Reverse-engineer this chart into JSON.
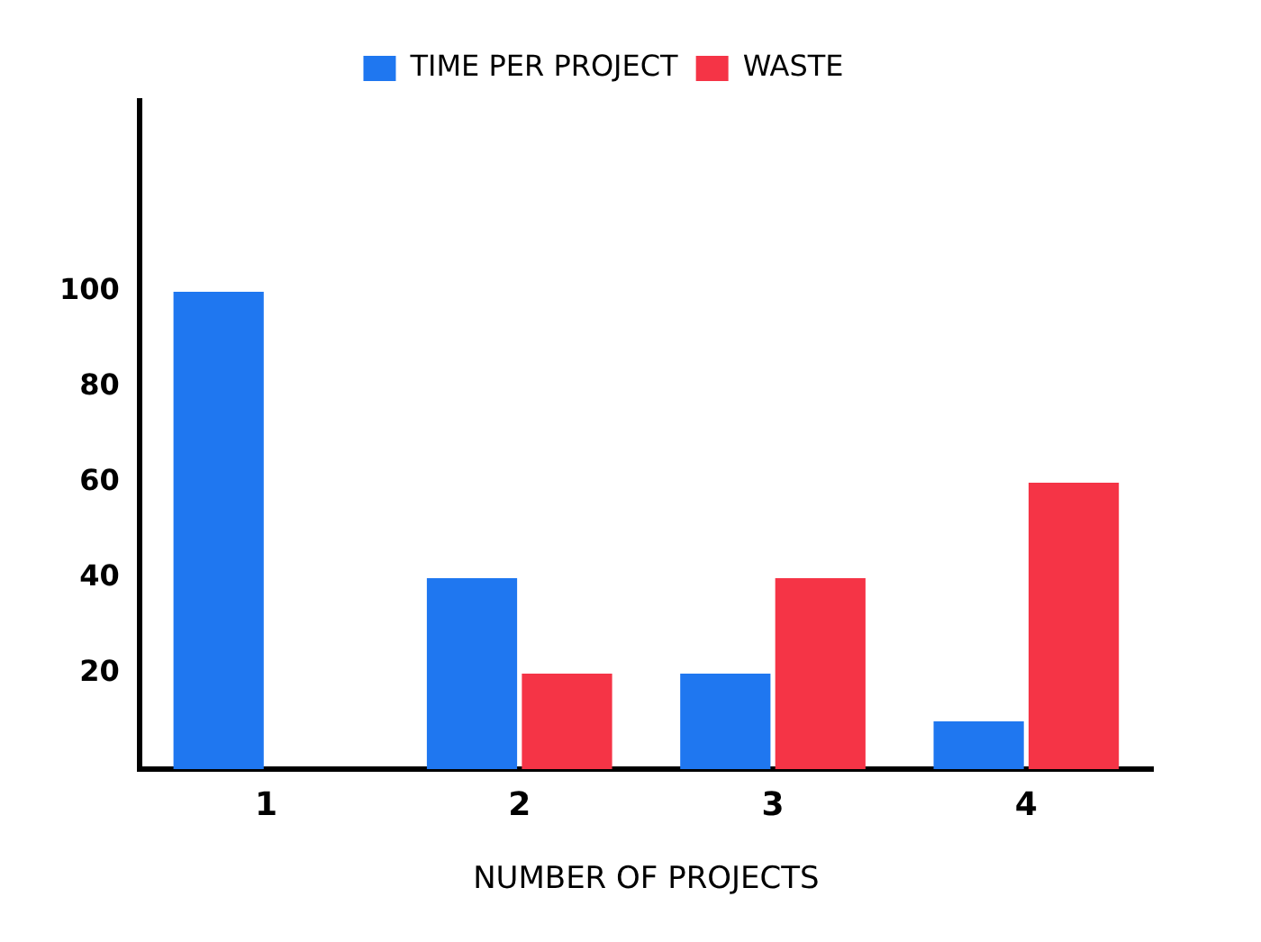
{
  "chart_data": {
    "type": "bar",
    "xlabel": "NUMBER OF PROJECTS",
    "categories": [
      "1",
      "2",
      "3",
      "4"
    ],
    "series": [
      {
        "name": "TIME PER PROJECT",
        "color": "#1f77f0",
        "values": [
          100,
          40,
          20,
          10
        ]
      },
      {
        "name": "WASTE",
        "color": "#f53446",
        "values": [
          null,
          20,
          40,
          60
        ]
      }
    ],
    "ylim": [
      0,
      140
    ],
    "yticks": [
      20,
      40,
      60,
      80,
      100
    ],
    "grid": false,
    "legend": "top"
  }
}
